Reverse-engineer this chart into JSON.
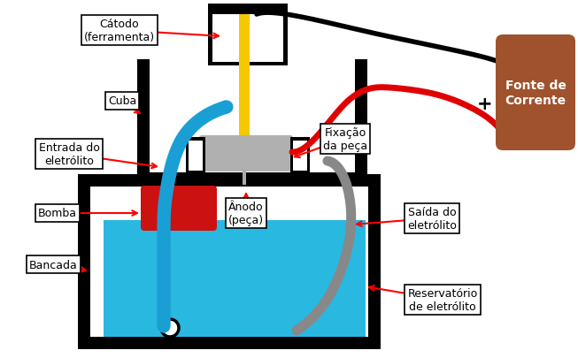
{
  "bg_color": "#ffffff",
  "black": "#000000",
  "yellow": "#f5c800",
  "blue_tube": "#1a9fd4",
  "red_wire": "#e00000",
  "gray_tube": "#888888",
  "brown": "#a0522d",
  "cyan_fill": "#29b8e0",
  "red_fill": "#cc1111",
  "labels": {
    "catodo": "Cátodo\n(ferramenta)",
    "cuba": "Cuba",
    "entrada": "Entrada do\neletrólito",
    "bomba": "Bomba",
    "bancada": "Bancada",
    "anodo": "Ânodo\n(peça)",
    "fixacao": "Fixação\nda peça",
    "saida": "Saída do\neletrólito",
    "reservatorio": "Reservatório\nde eletrólito",
    "fonte": "Fonte de\nCorrente",
    "minus": "-",
    "plus": "+"
  }
}
